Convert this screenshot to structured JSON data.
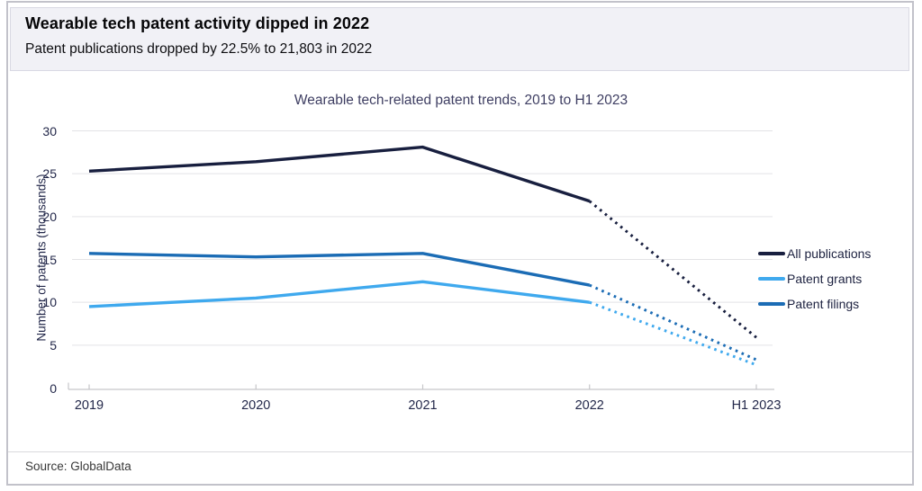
{
  "header": {
    "title": "Wearable tech patent activity dipped in 2022",
    "subtitle": "Patent publications dropped by 22.5% to 21,803 in 2022"
  },
  "footer": {
    "source": "Source: GlobalData"
  },
  "chart_data": {
    "type": "line",
    "title": "Wearable tech-related patent trends, 2019 to H1 2023",
    "xlabel": "",
    "ylabel": "Number of patents (thousands)",
    "categories": [
      "2019",
      "2020",
      "2021",
      "2022",
      "H1 2023"
    ],
    "yticks": [
      0,
      5,
      10,
      15,
      20,
      25,
      30
    ],
    "ylim": [
      0,
      30
    ],
    "grid": true,
    "legend_position": "right",
    "dotted_from_index": 3,
    "series": [
      {
        "name": "All publications",
        "color": "#181f3f",
        "values": [
          25.3,
          26.4,
          28.1,
          21.8,
          5.9
        ]
      },
      {
        "name": "Patent grants",
        "color": "#3fa9ee",
        "values": [
          9.5,
          10.5,
          12.4,
          10.0,
          2.7
        ]
      },
      {
        "name": "Patent filings",
        "color": "#1b6cb5",
        "values": [
          15.7,
          15.3,
          15.7,
          12.0,
          3.3
        ]
      }
    ],
    "colors": {
      "grid": "#e3e3e6",
      "axis": "#c6c6c9",
      "tick_label": "#23284a",
      "chart_title": "#3e3e62"
    }
  }
}
